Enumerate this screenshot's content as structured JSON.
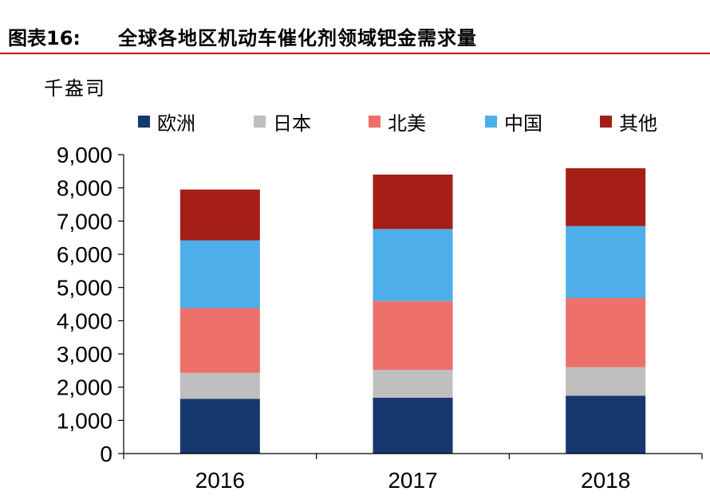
{
  "header": {
    "figure_label": "图表16:",
    "figure_title": "全球各地区机动车催化剂领域钯金需求量",
    "rule_color": "#c00000"
  },
  "chart_data": {
    "type": "bar",
    "stacked": true,
    "unit_label": "千盎司",
    "categories": [
      "2016",
      "2017",
      "2018"
    ],
    "series": [
      {
        "name": "欧洲",
        "color": "#17376f",
        "values": [
          1650,
          1680,
          1740
        ]
      },
      {
        "name": "日本",
        "color": "#bfbfbf",
        "values": [
          780,
          840,
          860
        ]
      },
      {
        "name": "北美",
        "color": "#ee706b",
        "values": [
          1950,
          2070,
          2080
        ]
      },
      {
        "name": "中国",
        "color": "#4eaeea",
        "values": [
          2040,
          2170,
          2170
        ]
      },
      {
        "name": "其他",
        "color": "#a51f17",
        "values": [
          1530,
          1640,
          1740
        ]
      }
    ],
    "ylim": [
      0,
      9000
    ],
    "yticks": [
      0,
      1000,
      2000,
      3000,
      4000,
      5000,
      6000,
      7000,
      8000,
      9000
    ],
    "ytick_labels": [
      "0",
      "1,000",
      "2,000",
      "3,000",
      "4,000",
      "5,000",
      "6,000",
      "7,000",
      "8,000",
      "9,000"
    ],
    "legend_position": "top",
    "grid": false
  }
}
